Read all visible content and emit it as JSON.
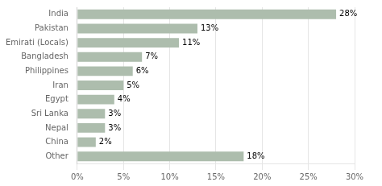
{
  "chart_data": {
    "type": "bar",
    "orientation": "horizontal",
    "categories": [
      "India",
      "Pakistan",
      "Emirati (Locals)",
      "Bangladesh",
      "Philippines",
      "Iran",
      "Egypt",
      "Sri Lanka",
      "Nepal",
      "China",
      "Other"
    ],
    "values": [
      28,
      13,
      11,
      7,
      6,
      5,
      4,
      3,
      3,
      2,
      18
    ],
    "value_labels": [
      "28%",
      "13%",
      "11%",
      "7%",
      "6%",
      "5%",
      "4%",
      "3%",
      "3%",
      "2%",
      "18%"
    ],
    "data_labels": true,
    "color": "#adbdad",
    "xlim": [
      0,
      30
    ],
    "xticks": [
      {
        "value": 0,
        "label": "0%"
      },
      {
        "value": 5,
        "label": "5%"
      },
      {
        "value": 10,
        "label": "10%"
      },
      {
        "value": 15,
        "label": "15%"
      },
      {
        "value": 20,
        "label": "20%"
      },
      {
        "value": 25,
        "label": "25%"
      },
      {
        "value": 30,
        "label": "30%"
      }
    ],
    "grid": true
  }
}
